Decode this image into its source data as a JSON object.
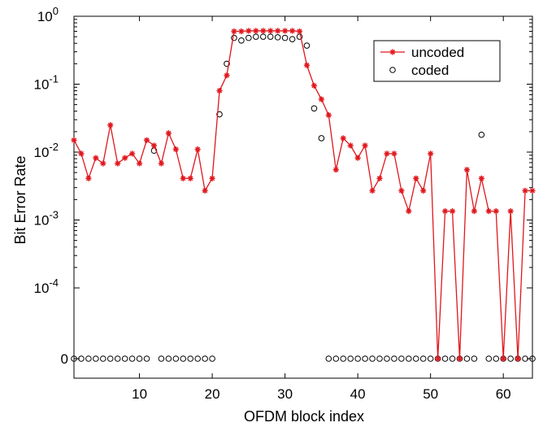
{
  "chart_data": {
    "type": "scatter",
    "title": "",
    "xlabel": "OFDM block index",
    "ylabel": "Bit Error Rate",
    "xlim": [
      1,
      64
    ],
    "xscale": "linear",
    "yscale": "log with a zero row below 1e-5",
    "ylim": [
      0,
      1
    ],
    "grid": false,
    "legend": "top-right",
    "x_ticks": [
      10,
      20,
      30,
      40,
      50,
      60
    ],
    "y_ticks": [
      {
        "value": 0,
        "base": "0",
        "exp": ""
      },
      {
        "value": 0.0001,
        "base": "10",
        "exp": "-4"
      },
      {
        "value": 0.001,
        "base": "10",
        "exp": "-3"
      },
      {
        "value": 0.01,
        "base": "10",
        "exp": "-2"
      },
      {
        "value": 0.1,
        "base": "10",
        "exp": "-1"
      },
      {
        "value": 1,
        "base": "10",
        "exp": "0"
      }
    ],
    "series": [
      {
        "name": "uncoded",
        "style": "red line with star markers",
        "color": "#e0171d",
        "x": [
          1,
          2,
          3,
          4,
          5,
          6,
          7,
          8,
          9,
          10,
          11,
          12,
          13,
          14,
          15,
          16,
          17,
          18,
          19,
          20,
          21,
          22,
          23,
          24,
          25,
          26,
          27,
          28,
          29,
          30,
          31,
          32,
          33,
          34,
          35,
          36,
          37,
          38,
          39,
          40,
          41,
          42,
          43,
          44,
          45,
          46,
          47,
          48,
          49,
          50,
          51,
          52,
          53,
          54,
          55,
          56,
          57,
          58,
          59,
          60,
          61,
          62,
          63,
          64
        ],
        "values": [
          0.015,
          0.0095,
          0.0041,
          0.0082,
          0.0068,
          0.025,
          0.0068,
          0.0082,
          0.0095,
          0.0068,
          0.015,
          0.0125,
          0.0068,
          0.019,
          0.011,
          0.0041,
          0.0041,
          0.011,
          0.0027,
          0.0041,
          0.08,
          0.135,
          0.6,
          0.6,
          0.61,
          0.61,
          0.61,
          0.61,
          0.61,
          0.61,
          0.61,
          0.6,
          0.19,
          0.095,
          0.06,
          0.035,
          0.0055,
          0.016,
          0.0125,
          0.0082,
          0.0125,
          0.0027,
          0.0041,
          0.0095,
          0.0095,
          0.0027,
          0.00135,
          0.0041,
          0.0027,
          0.0095,
          0,
          0.00135,
          0.00135,
          0,
          0.0055,
          0.00135,
          0.0041,
          0.00135,
          0.00135,
          0,
          0.00135,
          0,
          0.0027,
          0.0027
        ]
      },
      {
        "name": "coded",
        "style": "black open circle markers",
        "color": "#000000",
        "x": [
          1,
          2,
          3,
          4,
          5,
          6,
          7,
          8,
          9,
          10,
          11,
          12,
          13,
          14,
          15,
          16,
          17,
          18,
          19,
          20,
          21,
          22,
          23,
          24,
          25,
          26,
          27,
          28,
          29,
          30,
          31,
          32,
          33,
          34,
          35,
          36,
          37,
          38,
          39,
          40,
          41,
          42,
          43,
          44,
          45,
          46,
          47,
          48,
          49,
          50,
          51,
          52,
          53,
          54,
          55,
          56,
          57,
          58,
          59,
          60,
          61,
          62,
          63,
          64
        ],
        "values": [
          0,
          0,
          0,
          0,
          0,
          0,
          0,
          0,
          0,
          0,
          0,
          0.0105,
          0,
          0,
          0,
          0,
          0,
          0,
          0,
          0,
          0.036,
          0.2,
          0.48,
          0.44,
          0.48,
          0.5,
          0.5,
          0.5,
          0.49,
          0.48,
          0.46,
          0.5,
          0.37,
          0.044,
          0.016,
          0,
          0,
          0,
          0,
          0,
          0,
          0,
          0,
          0,
          0,
          0,
          0,
          0,
          0,
          0,
          0,
          0,
          0,
          0,
          0,
          0,
          0.018,
          0,
          0,
          0,
          0,
          0,
          0,
          0
        ]
      }
    ]
  }
}
